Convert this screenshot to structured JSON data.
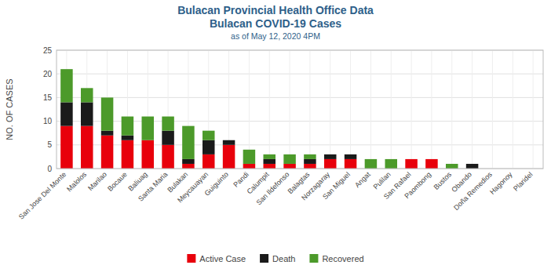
{
  "chart_data": {
    "type": "bar",
    "stacked": true,
    "title": "Bulacan Provincial Health Office Data\nBulacan COVID-19 Cases",
    "subtitle": "as of May 12, 2020 4PM",
    "ylabel": "NO. OF CASES",
    "categories": [
      "San Jose Del Monte",
      "Malolos",
      "Marilao",
      "Bocaue",
      "Baliuag",
      "Santa Maria",
      "Bulakan",
      "Meycauayan",
      "Guiguinto",
      "Pandi",
      "Calumpit",
      "San Ildefonso",
      "Balagtas",
      "Norzagaray",
      "San Miguel",
      "Angat",
      "Pulilan",
      "San Rafael",
      "Paombong",
      "Bustos",
      "Obando",
      "Doña Remedios",
      "Hagonoy",
      "Plaridel"
    ],
    "series": [
      {
        "name": "Active Case",
        "color": "#e8000b",
        "values": [
          9,
          9,
          7,
          6,
          6,
          5,
          1,
          3,
          5,
          1,
          1,
          1,
          1,
          2,
          2,
          0,
          0,
          2,
          2,
          0,
          0,
          0,
          0,
          0
        ]
      },
      {
        "name": "Death",
        "color": "#1a1a1a",
        "values": [
          5,
          5,
          1,
          1,
          0,
          3,
          1,
          3,
          1,
          0,
          1,
          0,
          1,
          1,
          1,
          0,
          0,
          0,
          0,
          0,
          1,
          0,
          0,
          0
        ]
      },
      {
        "name": "Recovered",
        "color": "#4c9a2a",
        "values": [
          7,
          3,
          7,
          4,
          5,
          3,
          7,
          2,
          0,
          3,
          1,
          2,
          1,
          0,
          0,
          2,
          2,
          0,
          0,
          1,
          0,
          0,
          0,
          0
        ]
      }
    ],
    "ylim": [
      0,
      25
    ],
    "yticks": [
      0,
      5,
      10,
      15,
      20,
      25
    ],
    "grid": true,
    "legend": "bottom"
  }
}
